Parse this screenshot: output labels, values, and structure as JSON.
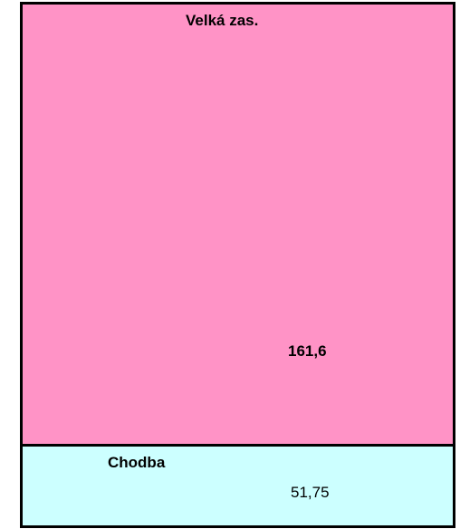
{
  "rooms": [
    {
      "name": "Velká zas.",
      "area": "161,6"
    },
    {
      "name": "Chodba",
      "area": "51,75"
    }
  ]
}
